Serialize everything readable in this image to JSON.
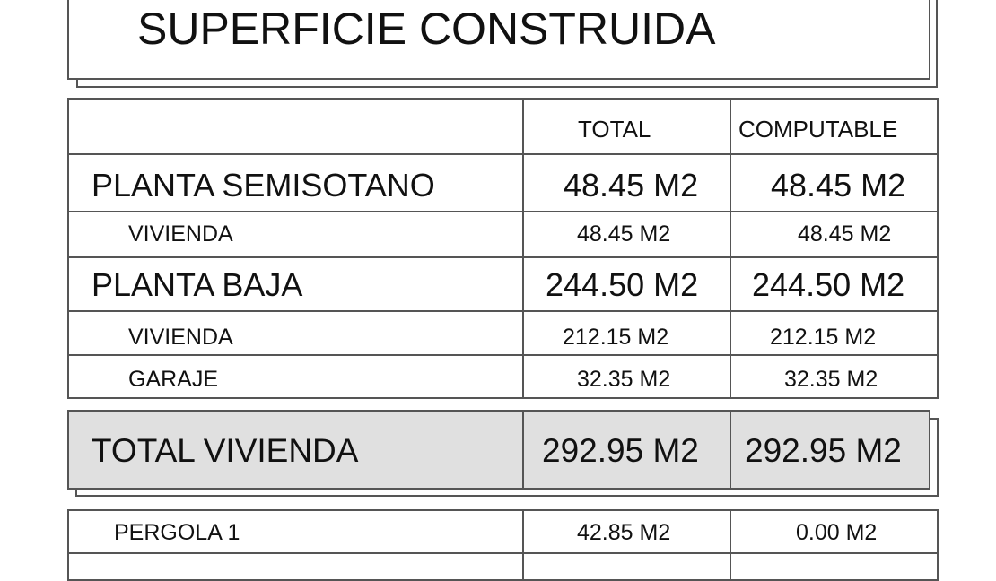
{
  "title": "SUPERFICIE CONSTRUIDA",
  "table": {
    "headers": [
      "",
      "TOTAL",
      "COMPUTABLE"
    ],
    "rows": [
      {
        "label": "PLANTA SEMISOTANO",
        "total": "48.45 M2",
        "computable": "48.45 M2",
        "level": "main"
      },
      {
        "label": "VIVIENDA",
        "total": "48.45 M2",
        "computable": "48.45 M2",
        "level": "sub"
      },
      {
        "label": "PLANTA BAJA",
        "total": "244.50 M2",
        "computable": "244.50 M2",
        "level": "main"
      },
      {
        "label": "VIVIENDA",
        "total": "212.15 M2",
        "computable": "212.15 M2",
        "level": "sub"
      },
      {
        "label": "GARAJE",
        "total": "32.35 M2",
        "computable": "32.35 M2",
        "level": "sub"
      }
    ]
  },
  "total_row": {
    "label": "TOTAL VIVIENDA",
    "total": "292.95 M2",
    "computable": "292.95 M2"
  },
  "extra_table": {
    "rows": [
      {
        "label": "PERGOLA 1",
        "total": "42.85 M2",
        "computable": "0.00 M2"
      }
    ]
  },
  "colors": {
    "total_fill": "#e0e0e0",
    "lines": "#555555"
  }
}
